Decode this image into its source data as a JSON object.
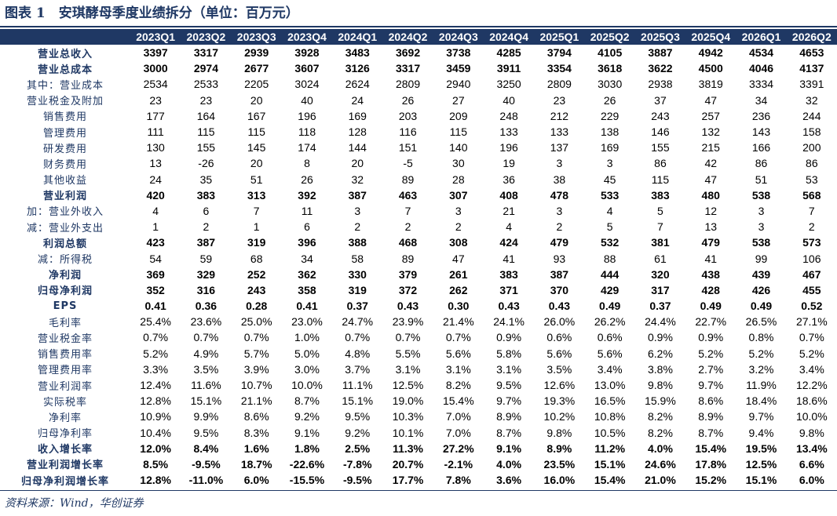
{
  "header": {
    "title": "图表 1　安琪酵母季度业绩拆分（单位：百万元）"
  },
  "table": {
    "columns": [
      "2023Q1",
      "2023Q2",
      "2023Q3",
      "2023Q4",
      "2024Q1",
      "2024Q2",
      "2024Q3",
      "2024Q4",
      "2025Q1",
      "2025Q2",
      "2025Q3",
      "2025Q4",
      "2026Q1",
      "2026Q2"
    ],
    "rows": [
      {
        "label": "营业总收入",
        "bold": true,
        "values": [
          "3397",
          "3317",
          "2939",
          "3928",
          "3483",
          "3692",
          "3738",
          "4285",
          "3794",
          "4105",
          "3887",
          "4942",
          "4534",
          "4653"
        ]
      },
      {
        "label": "营业总成本",
        "bold": true,
        "values": [
          "3000",
          "2974",
          "2677",
          "3607",
          "3126",
          "3317",
          "3459",
          "3911",
          "3354",
          "3618",
          "3622",
          "4500",
          "4046",
          "4137"
        ]
      },
      {
        "label": "其中：营业成本",
        "bold": false,
        "values": [
          "2534",
          "2533",
          "2205",
          "3024",
          "2624",
          "2809",
          "2940",
          "3250",
          "2809",
          "3030",
          "2938",
          "3819",
          "3334",
          "3391"
        ]
      },
      {
        "label": "营业税金及附加",
        "bold": false,
        "values": [
          "23",
          "23",
          "20",
          "40",
          "24",
          "26",
          "27",
          "40",
          "23",
          "26",
          "37",
          "47",
          "34",
          "32"
        ]
      },
      {
        "label": "销售费用",
        "bold": false,
        "values": [
          "177",
          "164",
          "167",
          "196",
          "169",
          "203",
          "209",
          "248",
          "212",
          "229",
          "243",
          "257",
          "236",
          "244"
        ]
      },
      {
        "label": "管理费用",
        "bold": false,
        "values": [
          "111",
          "115",
          "115",
          "118",
          "128",
          "116",
          "115",
          "133",
          "133",
          "138",
          "146",
          "132",
          "143",
          "158"
        ]
      },
      {
        "label": "研发费用",
        "bold": false,
        "values": [
          "130",
          "155",
          "145",
          "174",
          "144",
          "151",
          "140",
          "196",
          "137",
          "169",
          "155",
          "215",
          "166",
          "200"
        ]
      },
      {
        "label": "财务费用",
        "bold": false,
        "values": [
          "13",
          "-26",
          "20",
          "8",
          "20",
          "-5",
          "30",
          "19",
          "3",
          "3",
          "86",
          "42",
          "86",
          "86"
        ]
      },
      {
        "label": "其他收益",
        "bold": false,
        "values": [
          "24",
          "35",
          "51",
          "26",
          "32",
          "89",
          "28",
          "36",
          "38",
          "45",
          "115",
          "47",
          "51",
          "53"
        ]
      },
      {
        "label": "营业利润",
        "bold": true,
        "values": [
          "420",
          "383",
          "313",
          "392",
          "387",
          "463",
          "307",
          "408",
          "478",
          "533",
          "383",
          "480",
          "538",
          "568"
        ]
      },
      {
        "label": "加：营业外收入",
        "bold": false,
        "values": [
          "4",
          "6",
          "7",
          "11",
          "3",
          "7",
          "3",
          "21",
          "3",
          "4",
          "5",
          "12",
          "3",
          "7"
        ]
      },
      {
        "label": "减：营业外支出",
        "bold": false,
        "values": [
          "1",
          "2",
          "1",
          "6",
          "2",
          "2",
          "2",
          "4",
          "2",
          "5",
          "7",
          "13",
          "3",
          "2"
        ]
      },
      {
        "label": "利润总额",
        "bold": true,
        "values": [
          "423",
          "387",
          "319",
          "396",
          "388",
          "468",
          "308",
          "424",
          "479",
          "532",
          "381",
          "479",
          "538",
          "573"
        ]
      },
      {
        "label": "减：所得税",
        "bold": false,
        "values": [
          "54",
          "59",
          "68",
          "34",
          "58",
          "89",
          "47",
          "41",
          "93",
          "88",
          "61",
          "41",
          "99",
          "106"
        ]
      },
      {
        "label": "净利润",
        "bold": true,
        "values": [
          "369",
          "329",
          "252",
          "362",
          "330",
          "379",
          "261",
          "383",
          "387",
          "444",
          "320",
          "438",
          "439",
          "467"
        ]
      },
      {
        "label": "归母净利润",
        "bold": true,
        "values": [
          "352",
          "316",
          "243",
          "358",
          "319",
          "372",
          "262",
          "371",
          "370",
          "429",
          "317",
          "428",
          "426",
          "455"
        ]
      },
      {
        "label": "EPS",
        "bold": true,
        "values": [
          "0.41",
          "0.36",
          "0.28",
          "0.41",
          "0.37",
          "0.43",
          "0.30",
          "0.43",
          "0.43",
          "0.49",
          "0.37",
          "0.49",
          "0.49",
          "0.52"
        ]
      },
      {
        "label": "毛利率",
        "bold": false,
        "values": [
          "25.4%",
          "23.6%",
          "25.0%",
          "23.0%",
          "24.7%",
          "23.9%",
          "21.4%",
          "24.1%",
          "26.0%",
          "26.2%",
          "24.4%",
          "22.7%",
          "26.5%",
          "27.1%"
        ]
      },
      {
        "label": "营业税金率",
        "bold": false,
        "values": [
          "0.7%",
          "0.7%",
          "0.7%",
          "1.0%",
          "0.7%",
          "0.7%",
          "0.7%",
          "0.9%",
          "0.6%",
          "0.6%",
          "0.9%",
          "0.9%",
          "0.8%",
          "0.7%"
        ]
      },
      {
        "label": "销售费用率",
        "bold": false,
        "values": [
          "5.2%",
          "4.9%",
          "5.7%",
          "5.0%",
          "4.8%",
          "5.5%",
          "5.6%",
          "5.8%",
          "5.6%",
          "5.6%",
          "6.2%",
          "5.2%",
          "5.2%",
          "5.2%"
        ]
      },
      {
        "label": "管理费用率",
        "bold": false,
        "values": [
          "3.3%",
          "3.5%",
          "3.9%",
          "3.0%",
          "3.7%",
          "3.1%",
          "3.1%",
          "3.1%",
          "3.5%",
          "3.4%",
          "3.8%",
          "2.7%",
          "3.2%",
          "3.4%"
        ]
      },
      {
        "label": "营业利润率",
        "bold": false,
        "values": [
          "12.4%",
          "11.6%",
          "10.7%",
          "10.0%",
          "11.1%",
          "12.5%",
          "8.2%",
          "9.5%",
          "12.6%",
          "13.0%",
          "9.8%",
          "9.7%",
          "11.9%",
          "12.2%"
        ]
      },
      {
        "label": "实际税率",
        "bold": false,
        "values": [
          "12.8%",
          "15.1%",
          "21.1%",
          "8.7%",
          "15.1%",
          "19.0%",
          "15.4%",
          "9.7%",
          "19.3%",
          "16.5%",
          "15.9%",
          "8.6%",
          "18.4%",
          "18.6%"
        ]
      },
      {
        "label": "净利率",
        "bold": false,
        "values": [
          "10.9%",
          "9.9%",
          "8.6%",
          "9.2%",
          "9.5%",
          "10.3%",
          "7.0%",
          "8.9%",
          "10.2%",
          "10.8%",
          "8.2%",
          "8.9%",
          "9.7%",
          "10.0%"
        ]
      },
      {
        "label": "归母净利率",
        "bold": false,
        "values": [
          "10.4%",
          "9.5%",
          "8.3%",
          "9.1%",
          "9.2%",
          "10.1%",
          "7.0%",
          "8.7%",
          "9.8%",
          "10.5%",
          "8.2%",
          "8.7%",
          "9.4%",
          "9.8%"
        ]
      },
      {
        "label": "收入增长率",
        "bold": true,
        "values": [
          "12.0%",
          "8.4%",
          "1.6%",
          "1.8%",
          "2.5%",
          "11.3%",
          "27.2%",
          "9.1%",
          "8.9%",
          "11.2%",
          "4.0%",
          "15.4%",
          "19.5%",
          "13.4%"
        ]
      },
      {
        "label": "营业利润增长率",
        "bold": true,
        "values": [
          "8.5%",
          "-9.5%",
          "18.7%",
          "-22.6%",
          "-7.8%",
          "20.7%",
          "-2.1%",
          "4.0%",
          "23.5%",
          "15.1%",
          "24.6%",
          "17.8%",
          "12.5%",
          "6.6%"
        ]
      },
      {
        "label": "归母净利润增长率",
        "bold": true,
        "values": [
          "12.8%",
          "-11.0%",
          "6.0%",
          "-15.5%",
          "-9.5%",
          "17.7%",
          "7.8%",
          "3.6%",
          "16.0%",
          "15.4%",
          "21.0%",
          "15.2%",
          "15.1%",
          "6.0%"
        ]
      }
    ]
  },
  "footer": {
    "source": "资料来源：Wind，华创证券"
  }
}
